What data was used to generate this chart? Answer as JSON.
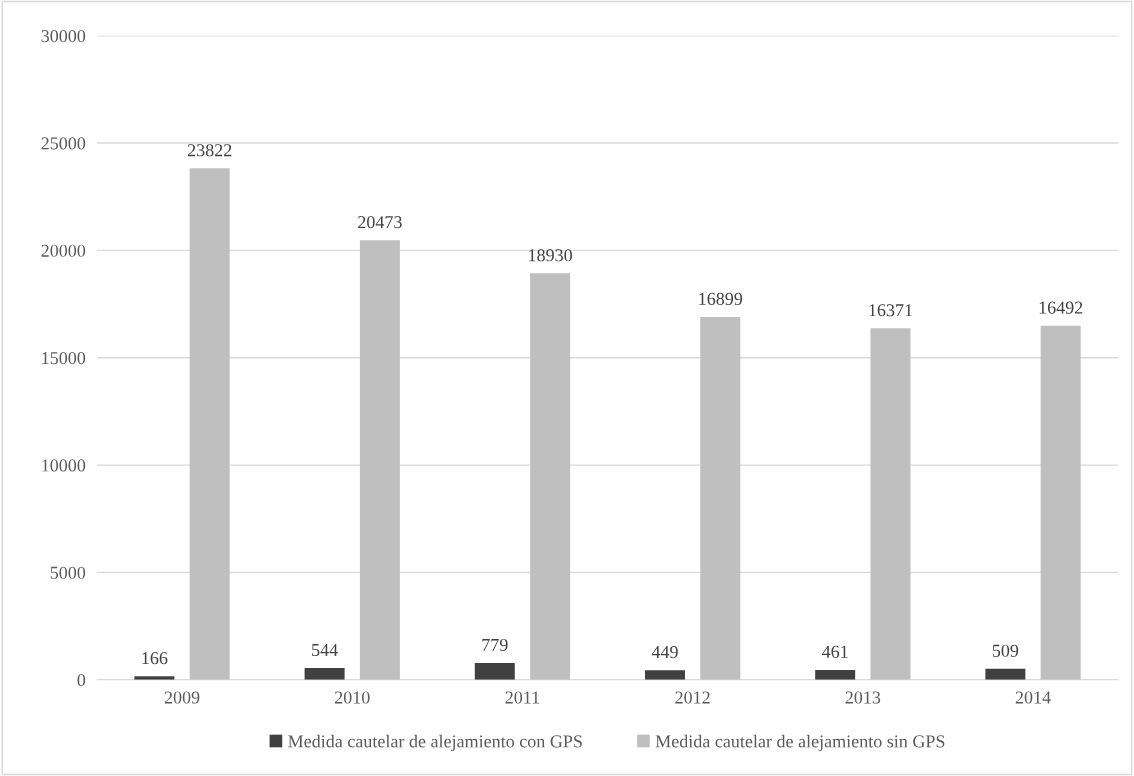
{
  "chart_data": {
    "type": "bar",
    "categories": [
      "2009",
      "2010",
      "2011",
      "2012",
      "2013",
      "2014"
    ],
    "series": [
      {
        "name": "Medida cautelar de alejamiento con GPS",
        "color": "#404040",
        "values": [
          166,
          544,
          779,
          449,
          461,
          509
        ]
      },
      {
        "name": "Medida cautelar de alejamiento sin GPS",
        "color": "#bfbfbf",
        "values": [
          23822,
          20473,
          18930,
          16899,
          16371,
          16492
        ]
      }
    ],
    "ylim": [
      0,
      30000
    ],
    "yticks": [
      0,
      5000,
      10000,
      15000,
      20000,
      25000,
      30000
    ],
    "grid": "y",
    "legend": "bottom",
    "data_labels": true
  }
}
